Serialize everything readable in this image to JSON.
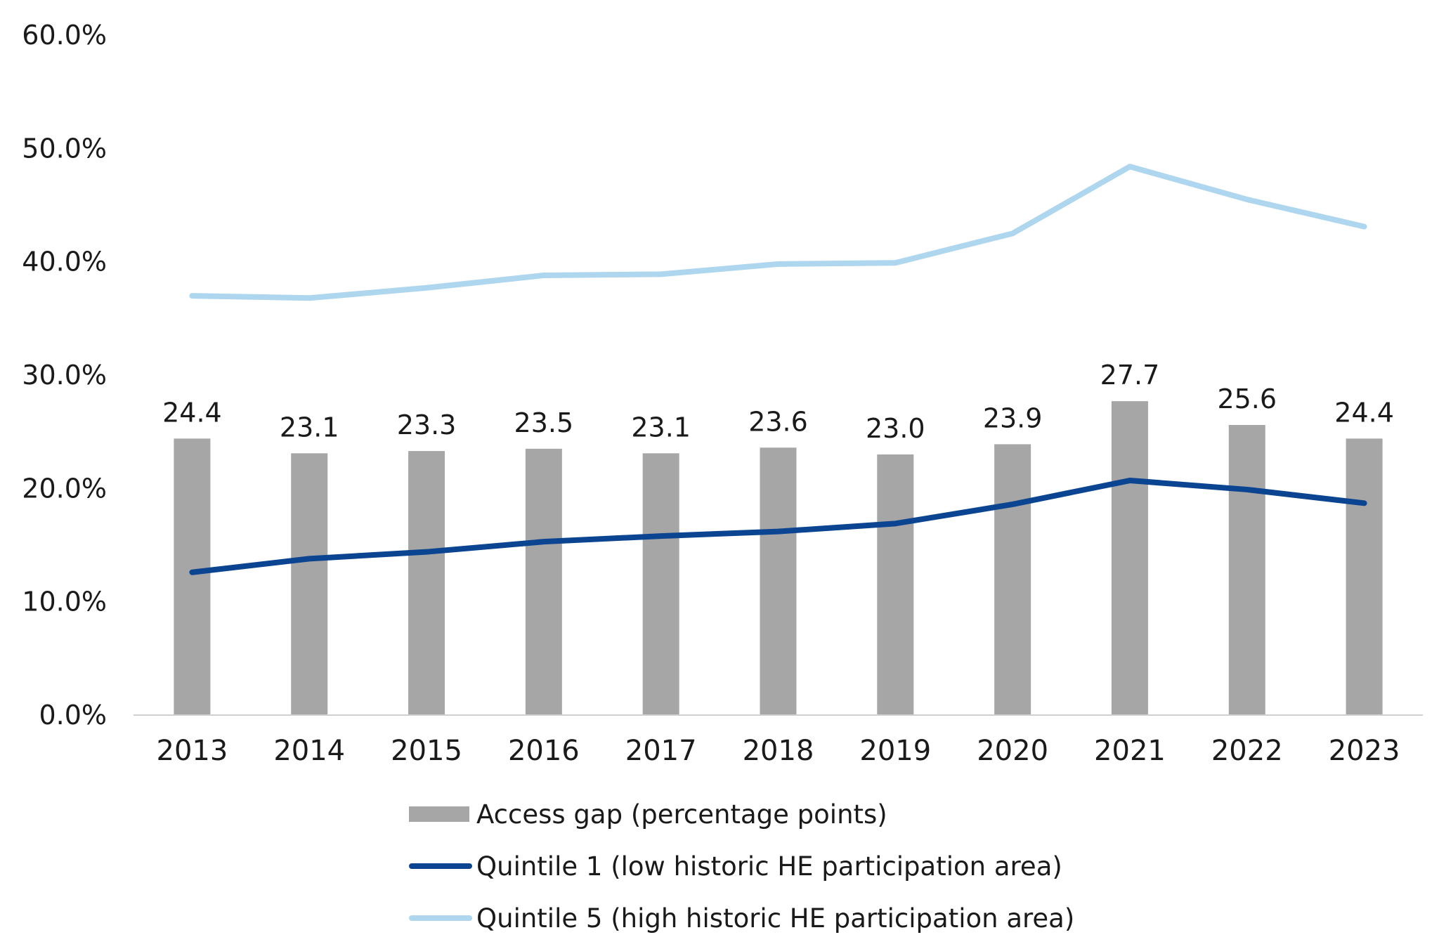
{
  "chart_data": {
    "type": "bar",
    "title": "",
    "xlabel": "",
    "ylabel": "",
    "ylim": [
      0,
      60
    ],
    "y_tick_values": [
      0,
      10,
      20,
      30,
      40,
      50,
      60
    ],
    "y_tick_labels": [
      "0.0%",
      "10.0%",
      "20.0%",
      "30.0%",
      "40.0%",
      "50.0%",
      "60.0%"
    ],
    "grid": false,
    "legend_placement": "bottom",
    "categories": [
      "2013",
      "2014",
      "2015",
      "2016",
      "2017",
      "2018",
      "2019",
      "2020",
      "2021",
      "2022",
      "2023"
    ],
    "series": [
      {
        "name": "Access gap (percentage points)",
        "type": "bar",
        "color": "#a6a6a6",
        "values": [
          24.4,
          23.1,
          23.3,
          23.5,
          23.1,
          23.6,
          23.0,
          23.9,
          27.7,
          25.6,
          24.4
        ],
        "data_labels": [
          "24.4",
          "23.1",
          "23.3",
          "23.5",
          "23.1",
          "23.6",
          "23.0",
          "23.9",
          "27.7",
          "25.6",
          "24.4"
        ]
      },
      {
        "name": "Quintile 1 (low historic HE participation area)",
        "type": "line",
        "color": "#0b4591",
        "values": [
          12.6,
          13.8,
          14.4,
          15.3,
          15.8,
          16.2,
          16.9,
          18.6,
          20.7,
          19.9,
          18.7
        ]
      },
      {
        "name": "Quintile 5 (high historic HE participation area)",
        "type": "line",
        "color": "#aed6ef",
        "values": [
          37.0,
          36.8,
          37.7,
          38.8,
          38.9,
          39.8,
          39.9,
          42.5,
          48.4,
          45.5,
          43.1
        ]
      }
    ]
  }
}
